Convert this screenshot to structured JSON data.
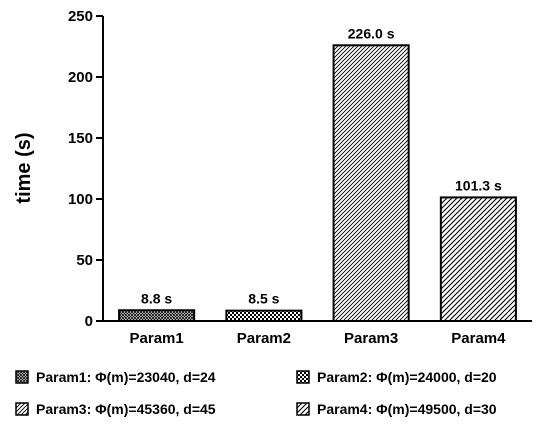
{
  "chart_data": {
    "type": "bar",
    "title": "",
    "xlabel": "",
    "ylabel": "time (s)",
    "ylim": [
      0,
      250
    ],
    "yticks": [
      0,
      50,
      100,
      150,
      200,
      250
    ],
    "grid": false,
    "legend_position": "bottom",
    "categories": [
      "Param1",
      "Param2",
      "Param3",
      "Param4"
    ],
    "values": [
      8.8,
      8.5,
      226.0,
      101.3
    ],
    "data_labels": [
      "8.8 s",
      "8.5 s",
      "226.0 s",
      "101.3 s"
    ],
    "patterns": [
      "dense-crosshatch",
      "checker",
      "diagonal-fine",
      "diagonal-medium"
    ],
    "legend": [
      "Param1: Φ(m)=23040, d=24",
      "Param2: Φ(m)=24000, d=20",
      "Param3: Φ(m)=45360, d=45",
      "Param4: Φ(m)=49500, d=30"
    ],
    "colors": {
      "bar_stroke": "#000000",
      "pattern_ink": "#000000",
      "background": "#ffffff"
    }
  }
}
